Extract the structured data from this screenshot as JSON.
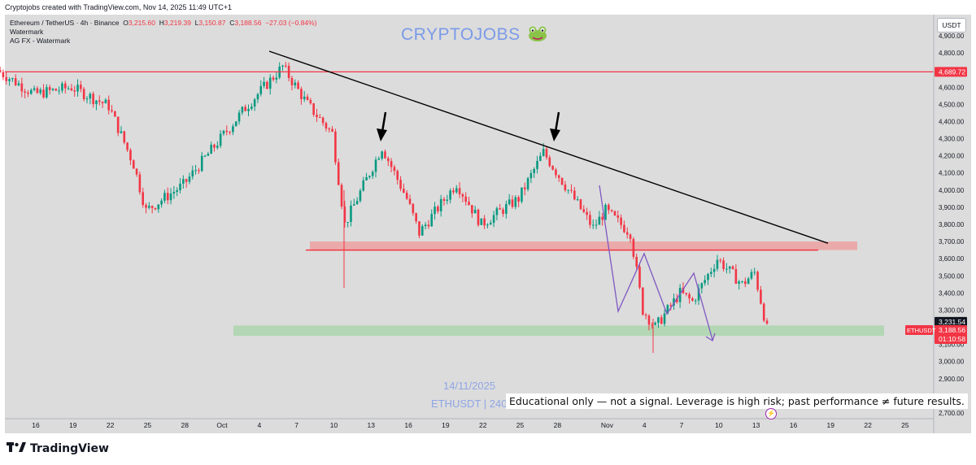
{
  "header": {
    "credit": "Cryptojobs created with TradingView.com, Nov 14, 2025 11:49 UTC+1",
    "symbol_title": "Ethereum / TetherUS · 4h · Binance",
    "ohlc": {
      "o_label": "O",
      "o_value": "3,215.60",
      "h_label": "H",
      "h_value": "3,219.39",
      "l_label": "L",
      "l_value": "3,150.87",
      "c_label": "C",
      "c_value": "3,188.56",
      "change": "−27.03 (−0.84%)"
    },
    "watermark_1": "Watermark",
    "watermark_2": "AG FX - Watermark",
    "currency_button": "USDT"
  },
  "overlay": {
    "brand": "CRYPTOJOBS",
    "brand_icon": "frog-icon",
    "date": "14/11/2025",
    "ticker": "ETHUSDT | 240",
    "disclaimer": "Educational only — not a signal. Leverage is high risk; past performance ≠ future results."
  },
  "footer": {
    "logo_text": "TradingView",
    "logo_icon": "tradingview-logo-icon"
  },
  "colors": {
    "bull": "#089981",
    "bear": "#f23645",
    "resistance": "#f23645",
    "trendline": "#000000",
    "support_zone": "#a5d6a7",
    "resistance_zone": "#ef9a9a",
    "path": "#7e57c2",
    "background": "#dcdcdc"
  },
  "chart_data": {
    "type": "candlestick",
    "y_axis": {
      "ticks": [
        "2,700.00",
        "2,800.00",
        "2,900.00",
        "3,000.00",
        "3,100.00",
        "3,200.00",
        "3,300.00",
        "3,400.00",
        "3,500.00",
        "3,600.00",
        "3,700.00",
        "3,800.00",
        "3,900.00",
        "4,000.00",
        "4,100.00",
        "4,200.00",
        "4,300.00",
        "4,400.00",
        "4,500.00",
        "4,600.00",
        "4,700.00",
        "4,800.00",
        "4,900.00"
      ],
      "range": [
        2660,
        4950
      ]
    },
    "x_axis": {
      "ticks": [
        "16",
        "19",
        "22",
        "25",
        "28",
        "Oct",
        "4",
        "7",
        "10",
        "13",
        "16",
        "19",
        "22",
        "25",
        "28",
        "Nov",
        "4",
        "7",
        "10",
        "13",
        "16",
        "19",
        "22",
        "25"
      ]
    },
    "price_labels": {
      "resistance_level": "4,689.72",
      "current_high": "3,231.54",
      "symbol": "ETHUSDT",
      "last_price": "3,188.56",
      "countdown": "01:10:58"
    },
    "levels": {
      "resistance": 4689.72,
      "last_price": 3188.56,
      "current_high": 3231.54
    },
    "trend_points": [
      {
        "x": "Sep 13",
        "y": 4700
      },
      {
        "x": "Sep 16",
        "y": 4560
      },
      {
        "x": "Sep 19",
        "y": 4600
      },
      {
        "x": "Sep 22",
        "y": 4490
      },
      {
        "x": "Sep 24",
        "y": 4150
      },
      {
        "x": "Sep 25",
        "y": 3880
      },
      {
        "x": "Sep 28",
        "y": 4030
      },
      {
        "x": "Oct 1",
        "y": 4300
      },
      {
        "x": "Oct 3",
        "y": 4480
      },
      {
        "x": "Oct 6",
        "y": 4720
      },
      {
        "x": "Oct 8",
        "y": 4500
      },
      {
        "x": "Oct 10",
        "y": 4330
      },
      {
        "x": "Oct 11",
        "y": 3800
      },
      {
        "x": "Oct 14",
        "y": 4250
      },
      {
        "x": "Oct 16",
        "y": 3950
      },
      {
        "x": "Oct 17",
        "y": 3750
      },
      {
        "x": "Oct 20",
        "y": 4040
      },
      {
        "x": "Oct 22",
        "y": 3800
      },
      {
        "x": "Oct 25",
        "y": 3950
      },
      {
        "x": "Oct 27",
        "y": 4220
      },
      {
        "x": "Oct 29",
        "y": 4000
      },
      {
        "x": "Oct 31",
        "y": 3780
      },
      {
        "x": "Nov 1",
        "y": 3880
      },
      {
        "x": "Nov 3",
        "y": 3750
      },
      {
        "x": "Nov 4",
        "y": 3300
      },
      {
        "x": "Nov 5",
        "y": 3200
      },
      {
        "x": "Nov 7",
        "y": 3400
      },
      {
        "x": "Nov 8",
        "y": 3350
      },
      {
        "x": "Nov 10",
        "y": 3600
      },
      {
        "x": "Nov 12",
        "y": 3450
      },
      {
        "x": "Nov 13",
        "y": 3520
      },
      {
        "x": "Nov 14",
        "y": 3189
      }
    ],
    "annotations": {
      "resistance_line": 4689.72,
      "neckline": 3650,
      "resistance_zone": [
        3650,
        3700
      ],
      "support_zone": [
        3150,
        3210
      ],
      "descending_trendline": [
        {
          "x": "Oct 7",
          "y": 4810
        },
        {
          "x": "Nov 19",
          "y": 3690
        }
      ],
      "arrows": [
        {
          "x": "Oct 14",
          "y": 4300
        },
        {
          "x": "Oct 28",
          "y": 4240
        }
      ],
      "projection_path": [
        {
          "x": "Nov 3",
          "y": 4030
        },
        {
          "x": "Nov 5",
          "y": 3290
        },
        {
          "x": "Nov 7",
          "y": 3590
        },
        {
          "x": "Nov 8",
          "y": 3290
        },
        {
          "x": "Nov 9",
          "y": 3490
        },
        {
          "x": "Nov 10",
          "y": 3130
        }
      ]
    }
  }
}
